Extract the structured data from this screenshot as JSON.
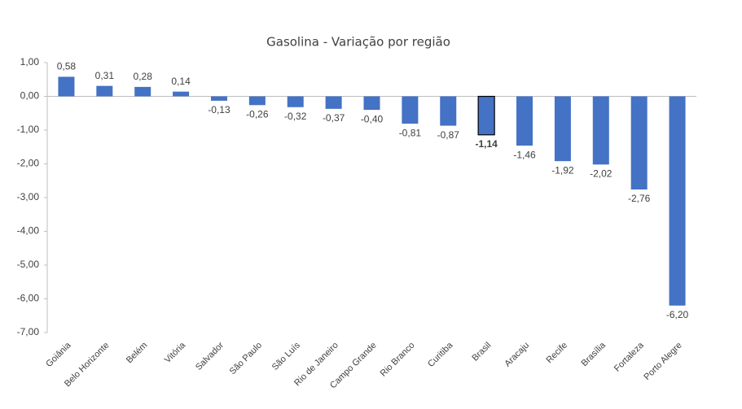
{
  "chart_data": {
    "type": "bar",
    "title": "Gasolina - Variação por região",
    "categories": [
      "Goiânia",
      "Belo Horizonte",
      "Belém",
      "Vitória",
      "Salvador",
      "São Paulo",
      "São Luís",
      "Rio de Janeiro",
      "Campo Grande",
      "Rio Branco",
      "Curitiba",
      "Brasil",
      "Aracaju",
      "Recife",
      "Brasília",
      "Fortaleza",
      "Porto Alegre"
    ],
    "values": [
      0.58,
      0.31,
      0.28,
      0.14,
      -0.13,
      -0.26,
      -0.32,
      -0.37,
      -0.4,
      -0.81,
      -0.87,
      -1.14,
      -1.46,
      -1.92,
      -2.02,
      -2.76,
      -6.2
    ],
    "value_labels": [
      "0,58",
      "0,31",
      "0,28",
      "0,14",
      "-0,13",
      "-0,26",
      "-0,32",
      "-0,37",
      "-0,40",
      "-0,81",
      "-0,87",
      "-1,14",
      "-1,46",
      "-1,92",
      "-2,02",
      "-2,76",
      "-6,20"
    ],
    "color": "#4472c4",
    "highlight_index": 11,
    "ylim": [
      -7,
      1
    ],
    "yticks": [
      {
        "value": 1,
        "label": "1,00"
      },
      {
        "value": 0,
        "label": "0,00"
      },
      {
        "value": -1,
        "label": "-1,00"
      },
      {
        "value": -2,
        "label": "-2,00"
      },
      {
        "value": -3,
        "label": "-3,00"
      },
      {
        "value": -4,
        "label": "-4,00"
      },
      {
        "value": -5,
        "label": "-5,00"
      },
      {
        "value": -6,
        "label": "-6,00"
      },
      {
        "value": -7,
        "label": "-7,00"
      }
    ]
  }
}
